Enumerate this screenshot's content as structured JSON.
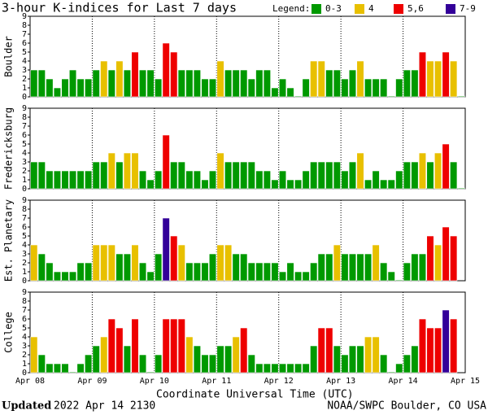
{
  "title": "3-hour K-indices for Last 7 days",
  "legend": {
    "label": "Legend:",
    "items": [
      {
        "label": "0-3",
        "color": "#009900"
      },
      {
        "label": "4",
        "color": "#e8c000"
      },
      {
        "label": "5,6",
        "color": "#ee0000"
      },
      {
        "label": "7-9",
        "color": "#330099"
      }
    ]
  },
  "x_axis": {
    "label": "Coordinate Universal Time (UTC)",
    "xlim": [
      0,
      56
    ],
    "xticks": [
      {
        "value": 0,
        "label": "Apr 08"
      },
      {
        "value": 8,
        "label": "Apr 09"
      },
      {
        "value": 16,
        "label": "Apr 10"
      },
      {
        "value": 24,
        "label": "Apr 11"
      },
      {
        "value": 32,
        "label": "Apr 12"
      },
      {
        "value": 40,
        "label": "Apr 13"
      },
      {
        "value": 48,
        "label": "Apr 14"
      },
      {
        "value": 56,
        "label": "Apr 15"
      }
    ]
  },
  "footer": {
    "updated_label": "Updated",
    "updated_time": "2022 Apr 14 2130",
    "source": "NOAA/SWPC Boulder, CO USA"
  },
  "chart_data": [
    {
      "type": "bar",
      "ylabel": "Boulder",
      "ylim": [
        0,
        9
      ],
      "yticks": [
        0,
        1,
        2,
        3,
        4,
        5,
        6,
        7,
        8,
        9
      ],
      "values": [
        3,
        3,
        2,
        1,
        2,
        3,
        2,
        2,
        3,
        4,
        3,
        4,
        3,
        5,
        3,
        3,
        2,
        6,
        5,
        3,
        3,
        3,
        2,
        2,
        4,
        3,
        3,
        3,
        2,
        3,
        3,
        1,
        2,
        1,
        0,
        2,
        4,
        4,
        3,
        3,
        2,
        3,
        4,
        2,
        2,
        2,
        0,
        2,
        3,
        3,
        5,
        4,
        4,
        5,
        4,
        0
      ]
    },
    {
      "type": "bar",
      "ylabel": "Fredericksburg",
      "ylim": [
        0,
        9
      ],
      "yticks": [
        0,
        1,
        2,
        3,
        4,
        5,
        6,
        7,
        8,
        9
      ],
      "values": [
        3,
        3,
        2,
        2,
        2,
        2,
        2,
        2,
        3,
        3,
        4,
        3,
        4,
        4,
        2,
        1,
        2,
        6,
        3,
        3,
        2,
        2,
        1,
        2,
        4,
        3,
        3,
        3,
        3,
        2,
        2,
        1,
        2,
        1,
        1,
        2,
        3,
        3,
        3,
        3,
        2,
        3,
        4,
        1,
        2,
        1,
        1,
        2,
        3,
        3,
        4,
        3,
        4,
        5,
        3,
        0
      ]
    },
    {
      "type": "bar",
      "ylabel": "Est. Planetary",
      "ylim": [
        0,
        9
      ],
      "yticks": [
        0,
        1,
        2,
        3,
        4,
        5,
        6,
        7,
        8,
        9
      ],
      "values": [
        4,
        3,
        2,
        1,
        1,
        1,
        2,
        2,
        4,
        4,
        4,
        3,
        3,
        4,
        2,
        1,
        3,
        7,
        5,
        4,
        2,
        2,
        2,
        3,
        4,
        4,
        3,
        3,
        2,
        2,
        2,
        2,
        1,
        2,
        1,
        1,
        2,
        3,
        3,
        4,
        3,
        3,
        3,
        3,
        4,
        2,
        1,
        0,
        2,
        3,
        3,
        5,
        4,
        6,
        5,
        null
      ]
    },
    {
      "type": "bar",
      "ylabel": "College",
      "ylim": [
        0,
        9
      ],
      "yticks": [
        0,
        1,
        2,
        3,
        4,
        5,
        6,
        7,
        8,
        9
      ],
      "values": [
        4,
        2,
        1,
        1,
        1,
        0,
        1,
        2,
        3,
        4,
        6,
        5,
        3,
        6,
        2,
        0,
        2,
        6,
        6,
        6,
        4,
        3,
        2,
        2,
        3,
        3,
        4,
        5,
        2,
        1,
        1,
        1,
        1,
        1,
        1,
        1,
        3,
        5,
        5,
        3,
        2,
        3,
        3,
        4,
        4,
        2,
        0,
        1,
        2,
        3,
        6,
        5,
        5,
        7,
        6,
        null
      ]
    }
  ]
}
